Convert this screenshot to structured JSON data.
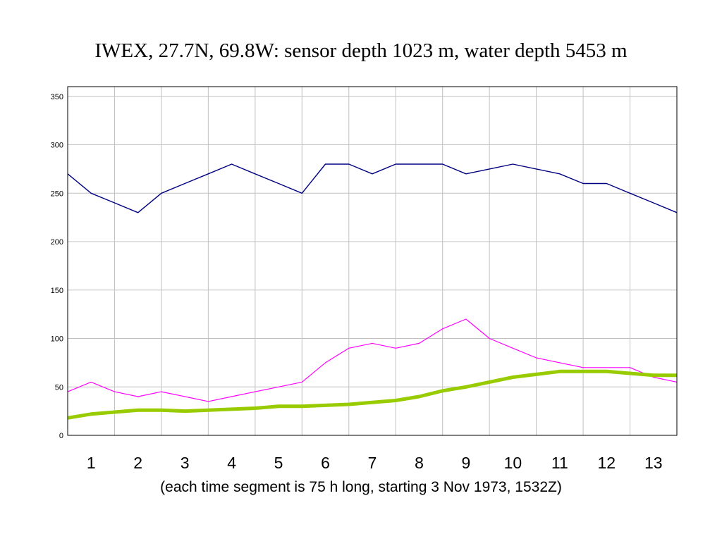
{
  "title": "IWEX, 27.7N, 69.8W: sensor depth 1023 m, water depth 5453 m",
  "subtitle": "(each time segment is 75 h long, starting 3 Nov 1973, 1532Z)",
  "chart_data": {
    "type": "line",
    "title": "IWEX, 27.7N, 69.8W: sensor depth 1023 m, water depth 5453 m",
    "xlabel": "(each time segment is 75 h long, starting 3 Nov 1973, 1532Z)",
    "ylabel": "",
    "xlim": [
      0,
      13
    ],
    "ylim": [
      0,
      360
    ],
    "yticks": [
      0,
      50,
      100,
      150,
      200,
      250,
      300,
      350
    ],
    "segment_labels": [
      "1",
      "2",
      "3",
      "4",
      "5",
      "6",
      "7",
      "8",
      "9",
      "10",
      "11",
      "12",
      "13"
    ],
    "grid": true,
    "legend": "none",
    "series": [
      {
        "color": "#000080",
        "x": [
          0,
          0.5,
          1,
          1.5,
          2,
          2.5,
          3,
          3.5,
          4,
          4.5,
          5,
          5.5,
          6,
          6.5,
          7,
          7.5,
          8,
          8.5,
          9,
          9.5,
          10,
          10.5,
          11,
          11.5,
          12,
          12.5,
          13
        ],
        "values": [
          270,
          250,
          240,
          230,
          250,
          260,
          270,
          280,
          270,
          260,
          250,
          280,
          280,
          270,
          280,
          280,
          280,
          270,
          275,
          280,
          275,
          270,
          260,
          260,
          250,
          240,
          230
        ]
      },
      {
        "color": "#ff00ff",
        "x": [
          0,
          0.5,
          1,
          1.5,
          2,
          2.5,
          3,
          3.5,
          4,
          4.5,
          5,
          5.5,
          6,
          6.5,
          7,
          7.5,
          8,
          8.5,
          9,
          9.5,
          10,
          10.5,
          11,
          11.5,
          12,
          12.5,
          13
        ],
        "values": [
          45,
          55,
          45,
          40,
          45,
          40,
          35,
          40,
          45,
          50,
          55,
          75,
          90,
          95,
          90,
          95,
          110,
          120,
          100,
          90,
          80,
          75,
          70,
          70,
          70,
          60,
          55
        ]
      },
      {
        "color": "#99cc00",
        "x": [
          0,
          0.5,
          1,
          1.5,
          2,
          2.5,
          3,
          3.5,
          4,
          4.5,
          5,
          5.5,
          6,
          6.5,
          7,
          7.5,
          8,
          8.5,
          9,
          9.5,
          10,
          10.5,
          11,
          11.5,
          12,
          12.5,
          13
        ],
        "values": [
          18,
          22,
          24,
          26,
          26,
          25,
          26,
          27,
          28,
          30,
          30,
          31,
          32,
          34,
          36,
          40,
          46,
          50,
          55,
          60,
          63,
          66,
          66,
          66,
          64,
          62,
          62
        ]
      }
    ]
  }
}
